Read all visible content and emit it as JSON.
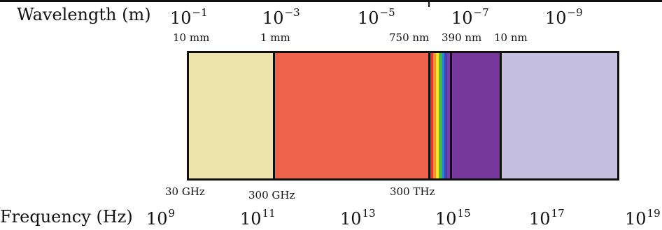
{
  "wavelength": {
    "title": "Wavelength (m)",
    "powers": [
      {
        "base": "10",
        "exp": "−1"
      },
      {
        "base": "10",
        "exp": "−3"
      },
      {
        "base": "10",
        "exp": "−5"
      },
      {
        "base": "10",
        "exp": "−7"
      },
      {
        "base": "10",
        "exp": "−9"
      }
    ],
    "boundaries": [
      "10 mm",
      "1 mm",
      "750 nm",
      "390 nm",
      "10 nm"
    ]
  },
  "frequency": {
    "title": "Frequency (Hz)",
    "powers": [
      {
        "base": "10",
        "exp": "9"
      },
      {
        "base": "10",
        "exp": "11"
      },
      {
        "base": "10",
        "exp": "13"
      },
      {
        "base": "10",
        "exp": "15"
      },
      {
        "base": "10",
        "exp": "17"
      },
      {
        "base": "10",
        "exp": "19"
      }
    ],
    "boundaries": [
      "30 GHz",
      "300 GHz",
      "300 THz"
    ]
  },
  "bands": {
    "colors": [
      "#ede3ad",
      "#ec624a",
      "#76389a",
      "#c5c0e0"
    ],
    "rainbow": [
      "#e23b2e",
      "#f39a24",
      "#f6e52a",
      "#4bbd45",
      "#2f86d8",
      "#4b3fa8",
      "#7a3ea6"
    ]
  }
}
